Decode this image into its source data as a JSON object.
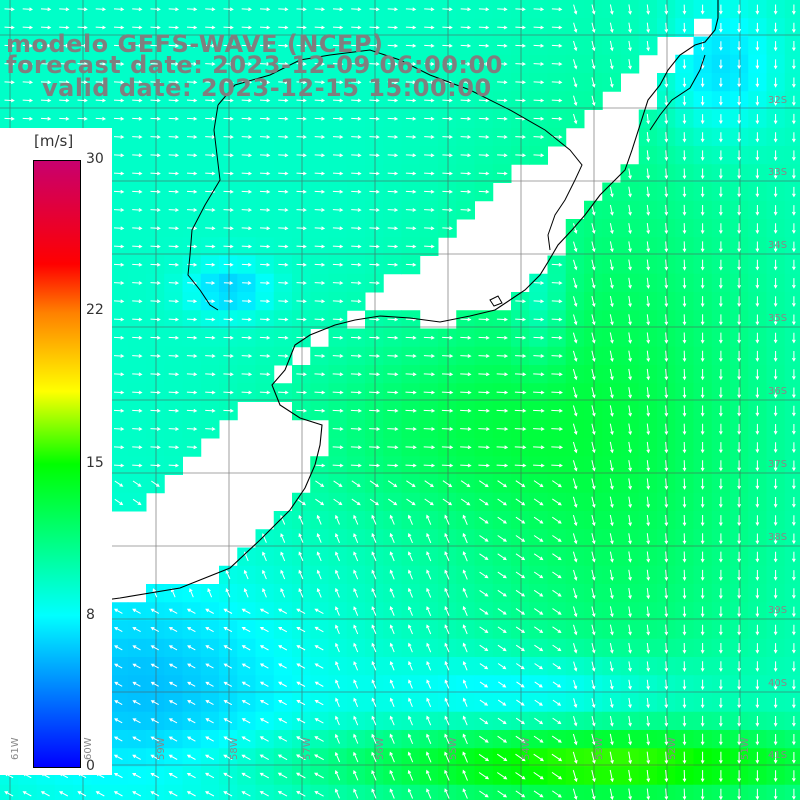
{
  "title": {
    "model": "modelo GEFS-WAVE (NCEP)",
    "forecast": "forecast date: 2023-12-09 06:00:00",
    "valid": "valid date: 2023-12-15 15:00:00"
  },
  "colorbar": {
    "unit": "[m/s]",
    "ticks": [
      "30",
      "22",
      "15",
      "8",
      "0"
    ]
  },
  "lat_labels": [
    "32S",
    "33S",
    "34S",
    "35S",
    "36S",
    "37S",
    "38S",
    "39S",
    "40S",
    "41S"
  ],
  "lon_labels": [
    "61W",
    "60W",
    "59W",
    "58W",
    "57W",
    "56W",
    "55W",
    "54W",
    "53W",
    "52W",
    "51W"
  ],
  "colors": {
    "coast": "#000000",
    "grid": "#555555",
    "label": "#888888",
    "arrow": "#ffffff"
  }
}
